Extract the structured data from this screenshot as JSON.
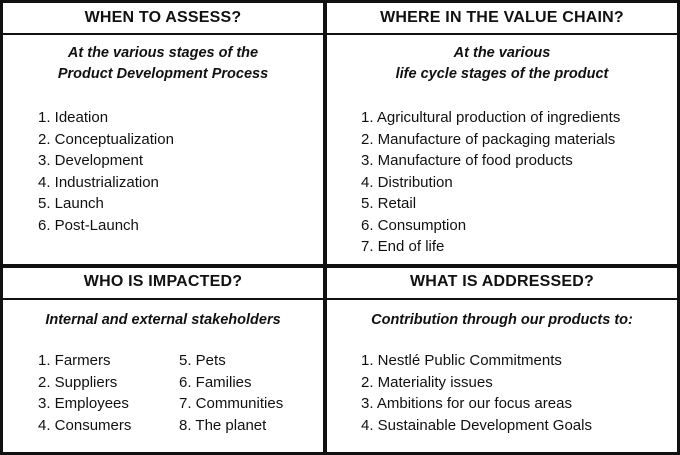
{
  "quadrants": {
    "when": {
      "heading": "WHEN TO ASSESS?",
      "subtitle_line1": "At the various stages of the",
      "subtitle_line2": "Product Development Process",
      "items": [
        "1. Ideation",
        "2. Conceptualization",
        "3. Development",
        "4. Industrialization",
        "5. Launch",
        "6. Post-Launch"
      ]
    },
    "where": {
      "heading": "WHERE IN THE VALUE CHAIN?",
      "subtitle_line1": "At the various",
      "subtitle_line2": "life cycle stages of the product",
      "items": [
        "1. Agricultural production of ingredients",
        "2. Manufacture of packaging materials",
        "3. Manufacture of food products",
        "4. Distribution",
        "5. Retail",
        "6. Consumption",
        "7. End of life"
      ]
    },
    "who": {
      "heading": "WHO IS IMPACTED?",
      "subtitle": "Internal and external stakeholders",
      "items_col1": [
        "1. Farmers",
        "2. Suppliers",
        "3. Employees",
        "4. Consumers"
      ],
      "items_col2": [
        "5. Pets",
        "6. Families",
        "7. Communities",
        "8. The planet"
      ]
    },
    "what": {
      "heading": "WHAT IS ADDRESSED?",
      "subtitle": "Contribution through our products to:",
      "items": [
        "1. Nestlé Public Commitments",
        "2. Materiality issues",
        "3. Ambitions for our focus areas",
        "4. Sustainable Development Goals"
      ]
    }
  }
}
